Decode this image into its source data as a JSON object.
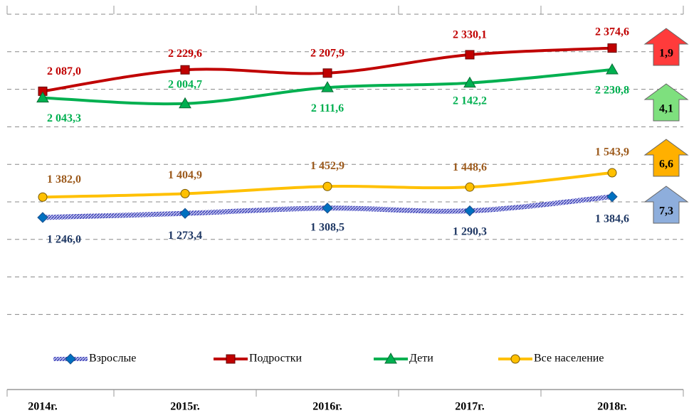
{
  "chart_data": {
    "type": "line",
    "categories": [
      "2014г.",
      "2015г.",
      "2016г.",
      "2017г.",
      "2018г."
    ],
    "series": [
      {
        "name": "Взрослые",
        "color": "#7b7fd8",
        "marker_color": "#0070c0",
        "label_color": "#1f3864",
        "marker": "diamond",
        "values": [
          1246.0,
          1273.4,
          1308.5,
          1290.3,
          1384.6
        ],
        "value_labels": [
          "1 246,0",
          "1 273,4",
          "1 308,5",
          "1 290,3",
          "1 384,6"
        ]
      },
      {
        "name": "Подростки",
        "color": "#c00000",
        "marker_color": "#c00000",
        "label_color": "#c00000",
        "marker": "square",
        "values": [
          2087.0,
          2229.6,
          2207.9,
          2330.1,
          2374.6
        ],
        "value_labels": [
          "2 087,0",
          "2 229,6",
          "2 207,9",
          "2 330,1",
          "2 374,6"
        ]
      },
      {
        "name": "Дети",
        "color": "#00b050",
        "marker_color": "#00b050",
        "label_color": "#00b050",
        "marker": "triangle",
        "values": [
          2043.3,
          2004.7,
          2111.6,
          2142.2,
          2230.8
        ],
        "value_labels": [
          "2 043,3",
          "2 004,7",
          "2 111,6",
          "2 142,2",
          "2 230,8"
        ]
      },
      {
        "name": "Все население",
        "color": "#ffc000",
        "marker_color": "#ffc000",
        "label_color": "#9c5a1c",
        "marker": "circle",
        "values": [
          1382.0,
          1404.9,
          1452.9,
          1448.6,
          1543.9
        ],
        "value_labels": [
          "1 382,0",
          "1 404,9",
          "1 452,9",
          "1 448,6",
          "1 543,9"
        ]
      }
    ],
    "ylim": [
      100,
      2600
    ],
    "yticks": [
      600,
      850,
      1100,
      1350,
      1600,
      1850,
      2100,
      2350,
      2600
    ],
    "grid": true,
    "annotations": [
      {
        "label": "1,9",
        "color": "#ff3b3b"
      },
      {
        "label": "4,1",
        "color": "#7ee07e"
      },
      {
        "label": "6,6",
        "color": "#ffb000"
      },
      {
        "label": "7,3",
        "color": "#8eaedc"
      }
    ]
  }
}
